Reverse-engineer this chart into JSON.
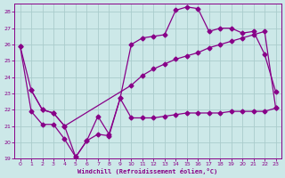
{
  "xlabel": "Windchill (Refroidissement éolien,°C)",
  "bg_color": "#cce8e8",
  "line_color": "#880088",
  "grid_color": "#aacccc",
  "xlim": [
    -0.5,
    23.5
  ],
  "ylim": [
    19,
    28.5
  ],
  "xticks": [
    0,
    1,
    2,
    3,
    4,
    5,
    6,
    7,
    8,
    9,
    10,
    11,
    12,
    13,
    14,
    15,
    16,
    17,
    18,
    19,
    20,
    21,
    22,
    23
  ],
  "yticks": [
    19,
    20,
    21,
    22,
    23,
    24,
    25,
    26,
    27,
    28
  ],
  "line1_x": [
    0,
    1,
    2,
    3,
    4,
    5,
    6,
    7,
    8,
    9,
    10,
    11,
    12,
    13,
    14,
    15,
    16,
    17,
    18,
    19,
    20,
    21,
    22,
    23
  ],
  "line1_y": [
    25.9,
    23.2,
    22.0,
    21.8,
    21.0,
    19.1,
    20.1,
    21.6,
    20.5,
    22.7,
    26.0,
    26.4,
    26.5,
    26.6,
    28.1,
    28.3,
    28.2,
    26.8,
    27.0,
    27.0,
    26.7,
    26.8,
    25.4,
    23.1
  ],
  "line2_x": [
    1,
    2,
    3,
    4,
    10,
    11,
    12,
    13,
    14,
    15,
    16,
    17,
    18,
    19,
    20,
    21,
    22,
    23
  ],
  "line2_y": [
    23.2,
    22.0,
    21.8,
    21.0,
    23.5,
    24.1,
    24.5,
    24.8,
    25.1,
    25.3,
    25.5,
    25.8,
    26.0,
    26.2,
    26.4,
    26.6,
    26.8,
    22.1
  ],
  "line3_x": [
    0,
    1,
    2,
    3,
    4,
    5,
    6,
    7,
    8,
    9,
    10,
    11,
    12,
    13,
    14,
    15,
    16,
    17,
    18,
    19,
    20,
    21,
    22,
    23
  ],
  "line3_y": [
    25.9,
    21.9,
    21.1,
    21.1,
    20.2,
    19.1,
    20.1,
    20.5,
    20.4,
    22.7,
    21.5,
    21.5,
    21.5,
    21.6,
    21.7,
    21.8,
    21.8,
    21.8,
    21.8,
    21.9,
    21.9,
    21.9,
    21.9,
    22.1
  ],
  "marker": "D",
  "markersize": 2.5,
  "linewidth": 0.9
}
